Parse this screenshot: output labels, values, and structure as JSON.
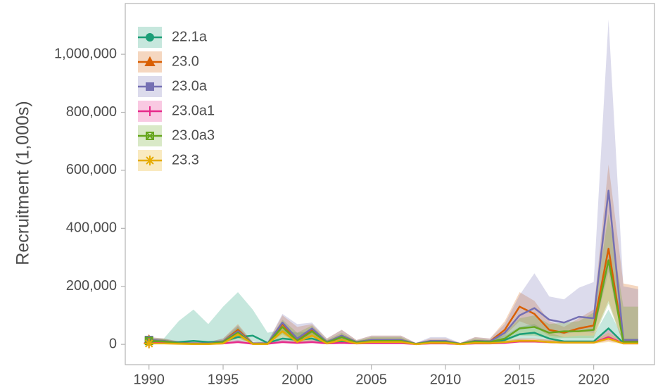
{
  "chart_data": {
    "type": "line",
    "y_label": "Recruitment (1,000s)",
    "legend": "top-left",
    "band_opacity": 0.25,
    "x": [
      1990,
      1991,
      1992,
      1993,
      1994,
      1995,
      1996,
      1997,
      1998,
      1999,
      2000,
      2001,
      2002,
      2003,
      2004,
      2005,
      2006,
      2007,
      2008,
      2009,
      2010,
      2011,
      2012,
      2013,
      2014,
      2015,
      2016,
      2017,
      2018,
      2019,
      2020,
      2021,
      2022,
      2023
    ],
    "xlim": [
      1988.4,
      2024.1
    ],
    "xticks": [
      1990,
      1995,
      2000,
      2005,
      2010,
      2015,
      2020
    ],
    "ylim": [
      -70000,
      1175000
    ],
    "yticks": [
      0,
      {
        "value": 200000,
        "label": "200,000"
      },
      {
        "value": 400000,
        "label": "400,000"
      },
      {
        "value": 600000,
        "label": "600,000"
      },
      {
        "value": 800000,
        "label": "800,000"
      },
      {
        "value": 1000000,
        "label": "1,000,000"
      }
    ],
    "series": [
      {
        "name": "22.1a",
        "color": "#1b9e77",
        "marker": "circle",
        "values": [
          10000,
          10000,
          8000,
          12000,
          8000,
          10000,
          25000,
          30000,
          5000,
          20000,
          15000,
          20000,
          5000,
          10000,
          5000,
          8000,
          8000,
          8000,
          2000,
          5000,
          5000,
          2000,
          5000,
          5000,
          15000,
          35000,
          40000,
          20000,
          10000,
          10000,
          10000,
          55000,
          5000,
          5000
        ],
        "upper": [
          20000,
          20000,
          80000,
          120000,
          70000,
          130000,
          180000,
          120000,
          40000,
          50000,
          40000,
          45000,
          15000,
          25000,
          12000,
          20000,
          20000,
          20000,
          5000,
          15000,
          15000,
          5000,
          15000,
          15000,
          30000,
          60000,
          70000,
          40000,
          25000,
          30000,
          30000,
          120000,
          20000,
          20000
        ],
        "lower": [
          4000,
          4000,
          2000,
          3000,
          2000,
          3000,
          8000,
          10000,
          1000,
          8000,
          5000,
          8000,
          1000,
          4000,
          1000,
          3000,
          3000,
          3000,
          500,
          1000,
          1000,
          500,
          1000,
          1000,
          5000,
          15000,
          18000,
          8000,
          4000,
          4000,
          4000,
          20000,
          1000,
          1000
        ]
      },
      {
        "name": "23.0",
        "color": "#d95f02",
        "marker": "triangle",
        "values": [
          15000,
          12000,
          5000,
          3000,
          3000,
          10000,
          50000,
          3000,
          3000,
          70000,
          15000,
          50000,
          8000,
          30000,
          8000,
          15000,
          15000,
          15000,
          2000,
          10000,
          10000,
          2000,
          12000,
          10000,
          50000,
          130000,
          105000,
          50000,
          40000,
          55000,
          65000,
          330000,
          10000,
          10000
        ],
        "upper": [
          25000,
          20000,
          10000,
          8000,
          8000,
          20000,
          70000,
          8000,
          8000,
          100000,
          60000,
          70000,
          20000,
          50000,
          15000,
          30000,
          30000,
          30000,
          5000,
          20000,
          20000,
          5000,
          25000,
          20000,
          80000,
          180000,
          150000,
          80000,
          60000,
          90000,
          120000,
          620000,
          210000,
          200000
        ],
        "lower": [
          8000,
          6000,
          2000,
          1000,
          1000,
          4000,
          30000,
          1000,
          1000,
          40000,
          5000,
          30000,
          3000,
          15000,
          3000,
          7000,
          7000,
          7000,
          500,
          5000,
          5000,
          500,
          6000,
          5000,
          30000,
          80000,
          60000,
          30000,
          25000,
          30000,
          30000,
          150000,
          2000,
          2000
        ]
      },
      {
        "name": "23.0a",
        "color": "#7570b3",
        "marker": "square",
        "values": [
          15000,
          12000,
          5000,
          3000,
          3000,
          10000,
          45000,
          3000,
          3000,
          75000,
          20000,
          55000,
          8000,
          30000,
          8000,
          15000,
          15000,
          15000,
          2000,
          12000,
          12000,
          2000,
          12000,
          10000,
          40000,
          100000,
          125000,
          85000,
          75000,
          95000,
          90000,
          530000,
          15000,
          15000
        ],
        "upper": [
          25000,
          20000,
          10000,
          8000,
          8000,
          20000,
          65000,
          8000,
          8000,
          105000,
          70000,
          75000,
          20000,
          50000,
          15000,
          30000,
          30000,
          30000,
          5000,
          25000,
          25000,
          5000,
          25000,
          20000,
          70000,
          170000,
          245000,
          165000,
          155000,
          195000,
          215000,
          1120000,
          200000,
          190000
        ],
        "lower": [
          8000,
          6000,
          2000,
          1000,
          1000,
          4000,
          25000,
          1000,
          1000,
          45000,
          8000,
          35000,
          3000,
          15000,
          3000,
          7000,
          7000,
          7000,
          500,
          6000,
          6000,
          500,
          6000,
          5000,
          20000,
          50000,
          60000,
          40000,
          35000,
          45000,
          40000,
          250000,
          3000,
          3000
        ]
      },
      {
        "name": "23.0a1",
        "color": "#e7298a",
        "marker": "plus",
        "values": [
          5000,
          5000,
          3000,
          2000,
          2000,
          3000,
          8000,
          2000,
          2000,
          8000,
          5000,
          8000,
          3000,
          5000,
          3000,
          4000,
          4000,
          4000,
          1000,
          3000,
          3000,
          1000,
          3000,
          3000,
          5000,
          10000,
          10000,
          8000,
          6000,
          6000,
          6000,
          25000,
          3000,
          3000
        ],
        "upper": [
          10000,
          10000,
          6000,
          4000,
          4000,
          6000,
          16000,
          4000,
          4000,
          16000,
          10000,
          16000,
          6000,
          10000,
          6000,
          8000,
          8000,
          8000,
          2000,
          6000,
          6000,
          2000,
          6000,
          6000,
          10000,
          20000,
          20000,
          16000,
          12000,
          12000,
          12000,
          50000,
          6000,
          6000
        ],
        "lower": [
          2500,
          2500,
          1500,
          1000,
          1000,
          1500,
          4000,
          1000,
          1000,
          4000,
          2500,
          4000,
          1500,
          2500,
          1500,
          2000,
          2000,
          2000,
          500,
          1500,
          1500,
          500,
          1500,
          1500,
          2500,
          5000,
          5000,
          4000,
          3000,
          3000,
          3000,
          12000,
          1500,
          1500
        ]
      },
      {
        "name": "23.0a3",
        "color": "#66a61e",
        "marker": "boxx",
        "values": [
          12000,
          10000,
          4000,
          2000,
          2000,
          8000,
          40000,
          2000,
          2000,
          60000,
          12000,
          45000,
          6000,
          25000,
          6000,
          12000,
          12000,
          12000,
          1500,
          8000,
          8000,
          1500,
          10000,
          8000,
          20000,
          55000,
          60000,
          40000,
          45000,
          45000,
          50000,
          290000,
          8000,
          8000
        ],
        "upper": [
          20000,
          18000,
          8000,
          5000,
          5000,
          15000,
          60000,
          5000,
          5000,
          85000,
          40000,
          65000,
          15000,
          40000,
          12000,
          25000,
          25000,
          25000,
          4000,
          15000,
          15000,
          4000,
          20000,
          15000,
          40000,
          90000,
          100000,
          70000,
          75000,
          80000,
          110000,
          450000,
          130000,
          130000
        ],
        "lower": [
          6000,
          5000,
          2000,
          1000,
          1000,
          4000,
          22000,
          1000,
          1000,
          35000,
          5000,
          25000,
          3000,
          12000,
          3000,
          6000,
          6000,
          6000,
          500,
          4000,
          4000,
          500,
          5000,
          4000,
          10000,
          30000,
          30000,
          20000,
          22000,
          22000,
          22000,
          140000,
          2000,
          2000
        ]
      },
      {
        "name": "23.3",
        "color": "#e6ab02",
        "marker": "asterisk",
        "values": [
          3000,
          3000,
          2000,
          1000,
          1000,
          3000,
          35000,
          1000,
          1000,
          45000,
          8000,
          30000,
          3000,
          15000,
          3000,
          8000,
          8000,
          8000,
          500,
          5000,
          5000,
          500,
          5000,
          4000,
          8000,
          12000,
          12000,
          8000,
          6000,
          6000,
          6000,
          20000,
          3000,
          3000
        ],
        "upper": [
          8000,
          8000,
          5000,
          3000,
          3000,
          8000,
          55000,
          3000,
          3000,
          70000,
          20000,
          50000,
          8000,
          25000,
          8000,
          15000,
          15000,
          15000,
          2000,
          10000,
          10000,
          2000,
          10000,
          8000,
          15000,
          20000,
          20000,
          15000,
          12000,
          12000,
          12000,
          40000,
          8000,
          8000
        ],
        "lower": [
          1000,
          1000,
          500,
          300,
          300,
          1000,
          20000,
          300,
          300,
          25000,
          3000,
          15000,
          1000,
          7000,
          1000,
          3000,
          3000,
          3000,
          100,
          2000,
          2000,
          100,
          2000,
          1500,
          3000,
          6000,
          6000,
          3000,
          2000,
          2000,
          2000,
          8000,
          1000,
          1000
        ]
      }
    ]
  }
}
